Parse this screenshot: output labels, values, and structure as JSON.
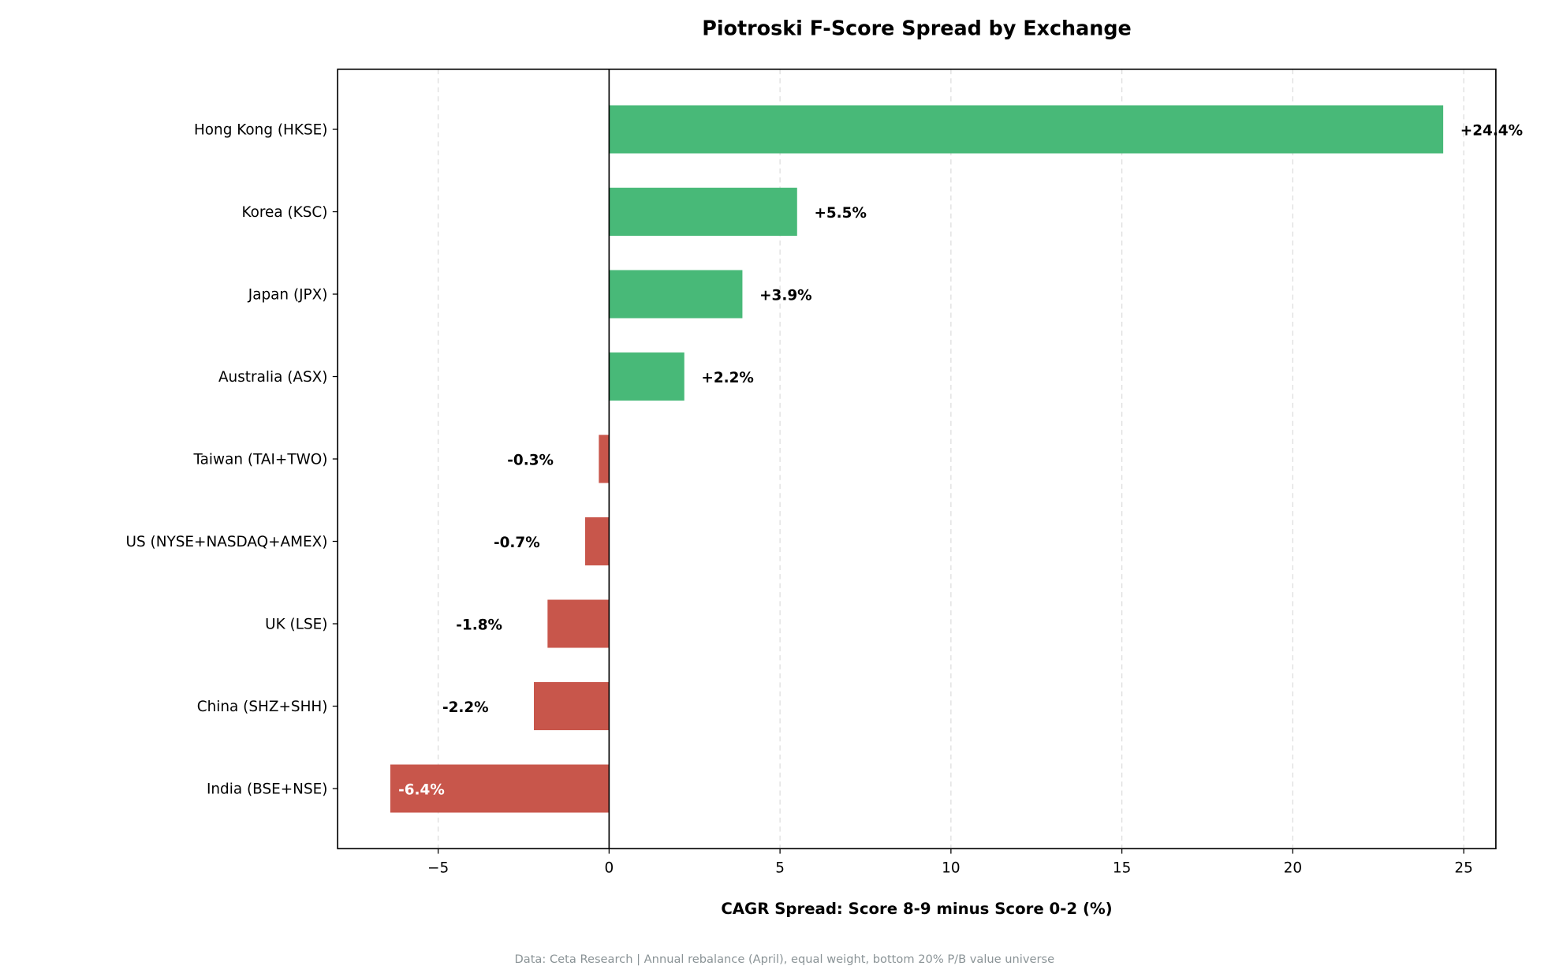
{
  "chart_data": {
    "type": "bar",
    "orientation": "horizontal",
    "title": "Piotroski F-Score Spread by Exchange",
    "xlabel": "CAGR Spread: Score 8-9 minus Score 0-2 (%)",
    "ylabel": "",
    "footer": "Data: Ceta Research | Annual rebalance (April), equal weight, bottom 20% P/B value universe",
    "categories": [
      "Hong Kong (HKSE)",
      "Korea (KSC)",
      "Japan (JPX)",
      "Australia (ASX)",
      "Taiwan (TAI+TWO)",
      "US (NYSE+NASDAQ+AMEX)",
      "UK (LSE)",
      "China (SHZ+SHH)",
      "India (BSE+NSE)"
    ],
    "values": [
      24.4,
      5.5,
      3.9,
      2.2,
      -0.3,
      -0.7,
      -1.8,
      -2.2,
      -6.4
    ],
    "data_labels": [
      "+24.4%",
      "+5.5%",
      "+3.9%",
      "+2.2%",
      "-0.3%",
      "-0.7%",
      "-1.8%",
      "-2.2%",
      "-6.4%"
    ],
    "xlim": [
      -7.94,
      25.94
    ],
    "xticks": [
      -5,
      0,
      5,
      10,
      15,
      20,
      25
    ],
    "xtick_labels": [
      "−5",
      "0",
      "5",
      "10",
      "15",
      "20",
      "25"
    ],
    "grid": "x, dashed",
    "colors": {
      "positive": "#48b978",
      "negative": "#c8564b"
    }
  }
}
